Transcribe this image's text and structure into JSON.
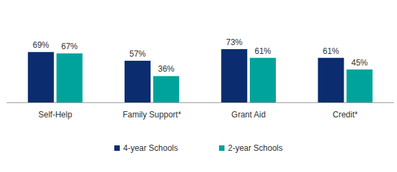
{
  "chart_data": {
    "type": "bar",
    "categories": [
      "Self-Help",
      "Family Support*",
      "Grant Aid",
      "Credit*"
    ],
    "series": [
      {
        "name": "4-year Schools",
        "color": "#0b2c6f",
        "values": [
          69,
          57,
          73,
          61
        ],
        "value_labels": [
          "69%",
          "57%",
          "73%",
          "61%"
        ]
      },
      {
        "name": "2-year Schools",
        "color": "#00a39b",
        "values": [
          67,
          36,
          61,
          45
        ],
        "value_labels": [
          "67%",
          "36%",
          "61%",
          "45%"
        ]
      }
    ],
    "ylim": [
      0,
      100
    ],
    "data_labels": true,
    "tick_labels": "x",
    "grid": false,
    "legend": "bottom"
  }
}
